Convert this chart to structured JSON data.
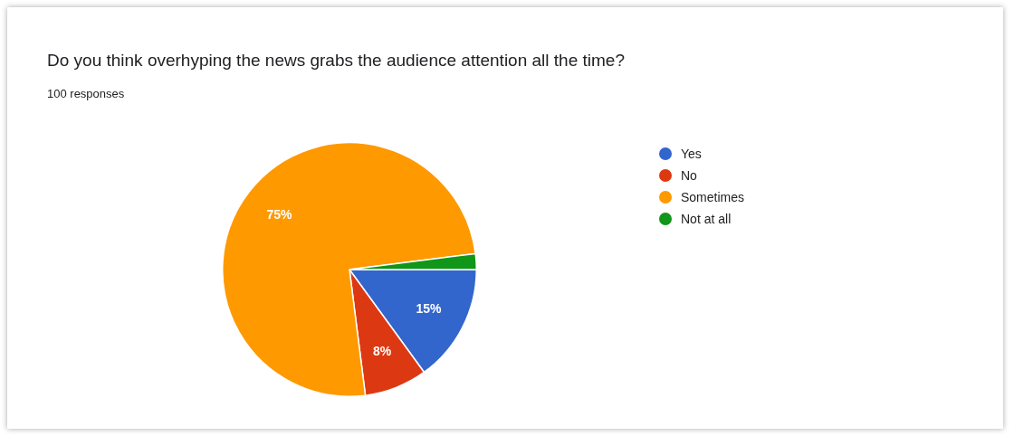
{
  "chart_data": {
    "type": "pie",
    "title": "Do you think overhyping the news grabs the audience attention all the time?",
    "subtitle": "100 responses",
    "categories": [
      "Yes",
      "No",
      "Sometimes",
      "Not at all"
    ],
    "values": [
      15,
      8,
      75,
      2
    ],
    "colors": [
      "#3366cc",
      "#dc3912",
      "#ff9900",
      "#109618"
    ],
    "value_labels": [
      "15%",
      "8%",
      "75%",
      null
    ],
    "legend": "right"
  }
}
